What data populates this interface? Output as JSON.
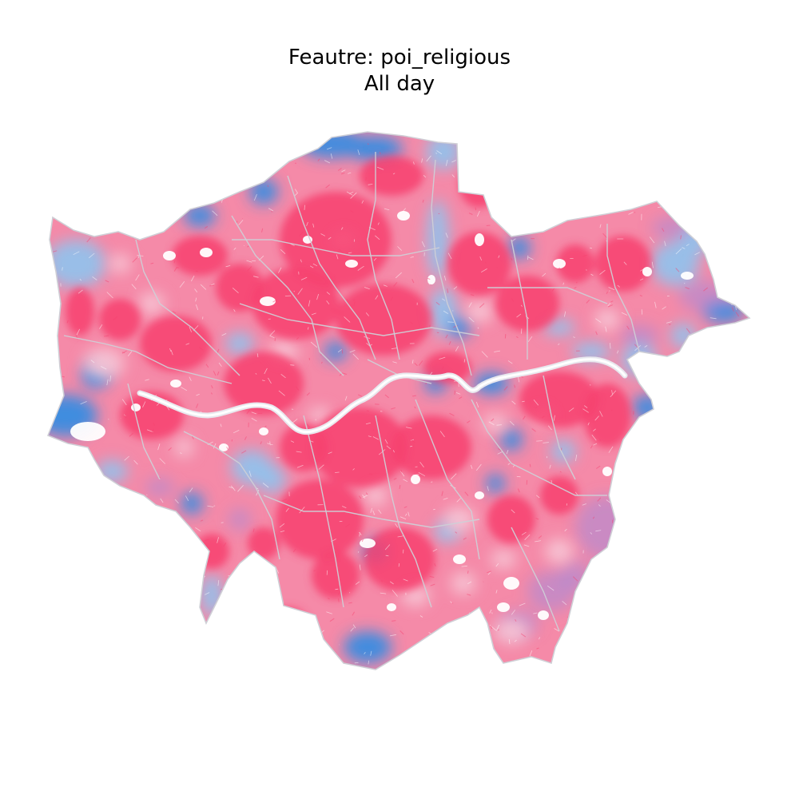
{
  "map": {
    "title": "Feautre: poi_religious",
    "subtitle": "All day",
    "feature": "poi_religious",
    "period": "All day",
    "colors": {
      "high": "#f7416f",
      "mid": "#f58aa8",
      "pale": "#f6c6d6",
      "low": "#2f8de4",
      "low_light": "#8fc3ee",
      "purple": "#a58ad8",
      "boundary": "#cfcfd6",
      "river": "#ffffff"
    }
  }
}
